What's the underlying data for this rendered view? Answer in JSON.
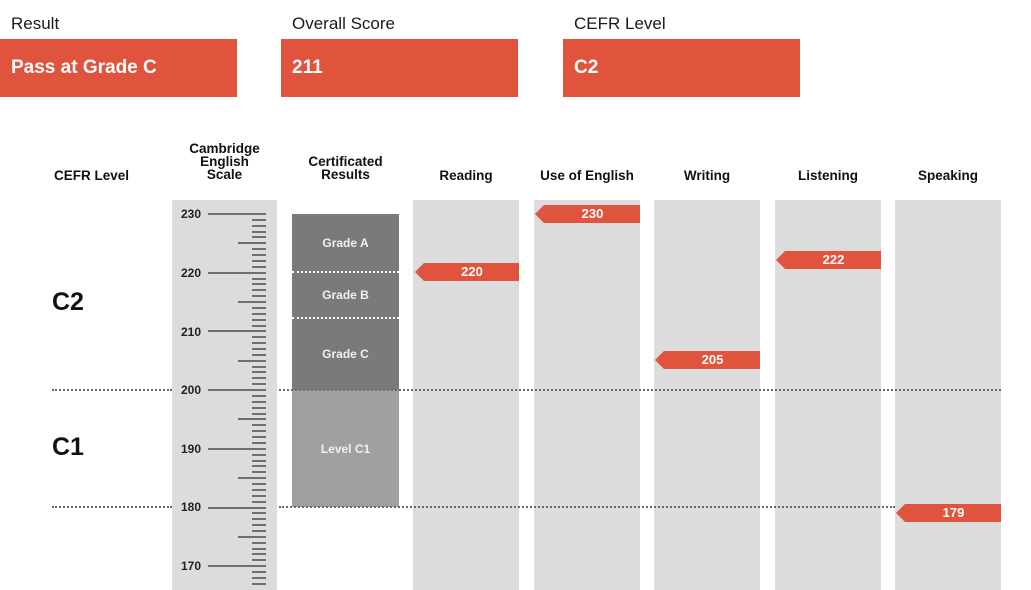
{
  "summary": {
    "result": {
      "label": "Result",
      "value": "Pass at Grade C"
    },
    "overall_score": {
      "label": "Overall Score",
      "value": "211"
    },
    "cefr_level": {
      "label": "CEFR Level",
      "value": "C2"
    }
  },
  "headers": {
    "cefr_level": "CEFR Level",
    "scale_line1": "Cambridge",
    "scale_line2": "English",
    "scale_line3": "Scale",
    "cert_line1": "Certificated",
    "cert_line2": "Results",
    "reading": "Reading",
    "use_of_english": "Use of English",
    "writing": "Writing",
    "listening": "Listening",
    "speaking": "Speaking"
  },
  "cefr_levels": {
    "upper": "C2",
    "lower": "C1"
  },
  "scale_labels": {
    "s230": "230",
    "s220": "220",
    "s210": "210",
    "s200": "200",
    "s190": "190",
    "s180": "180",
    "s170": "170"
  },
  "bands": {
    "grade_a": "Grade A",
    "grade_b": "Grade B",
    "grade_c": "Grade C",
    "level_c1": "Level C1"
  },
  "scores": {
    "reading": "220",
    "use_of_english": "230",
    "writing": "205",
    "listening": "222",
    "speaking": "179"
  },
  "colors": {
    "accent": "#e0533d",
    "lane": "#dcdcdc",
    "band_dark": "#7a7a7a",
    "band_light": "#a0a0a0"
  }
}
